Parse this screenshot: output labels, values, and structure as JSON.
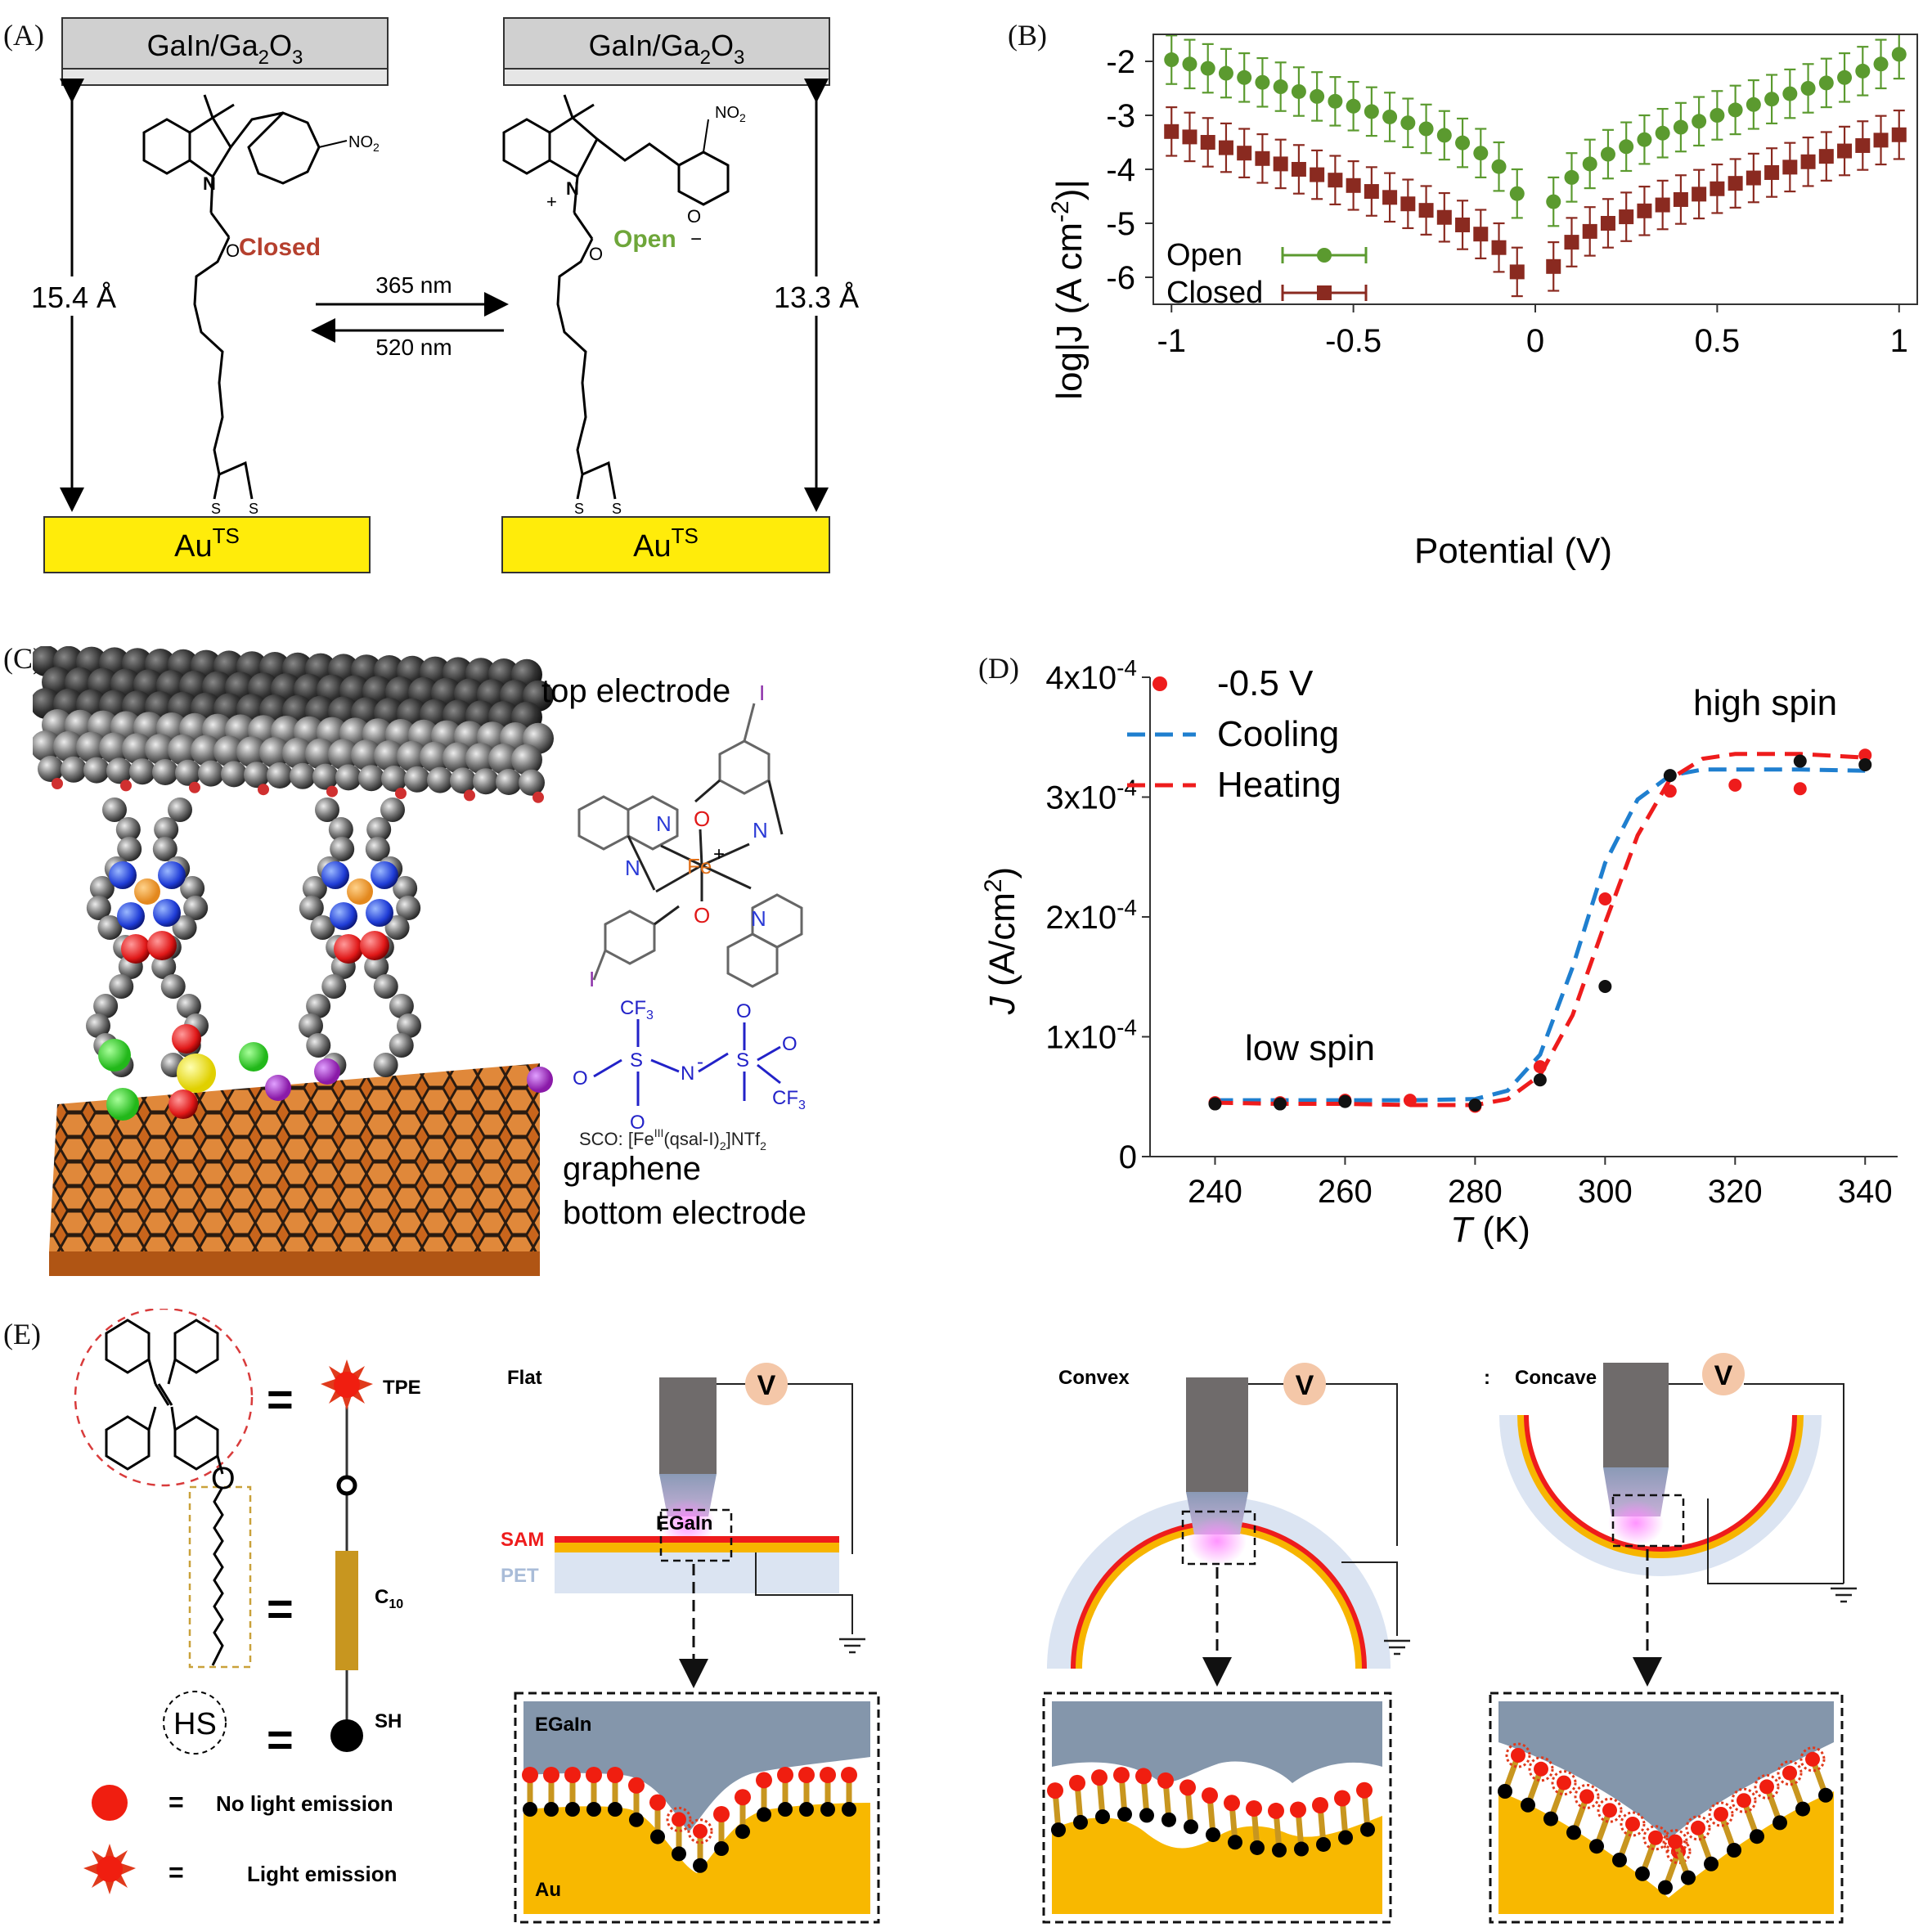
{
  "panel_labels": {
    "a": "(A)",
    "b": "(B)",
    "c": "(C)",
    "d": "(D)",
    "e": "(E)"
  },
  "panel_a": {
    "electrode_top": "GaIn/Ga",
    "electrode_top_sub": "2",
    "electrode_top_tail": "O",
    "electrode_top_sub2": "3",
    "bottom_main": "Au",
    "bottom_sup": "TS",
    "closed_label": "Closed",
    "open_label": "Open",
    "left_distance": "15.4 Å",
    "right_distance": "13.3 Å",
    "forward_wavelength": "365 nm",
    "back_wavelength": "520 nm",
    "nitro": "NO",
    "nitro_sub": "2",
    "nitrogen": "N",
    "oxygen": "O",
    "sulfur": "S",
    "plus": "+",
    "minus": "−"
  },
  "panel_c": {
    "top_electrode": "top  electrode",
    "graphene": "graphene",
    "bottom_electrode": "bottom  electrode",
    "sco_prefix": "SCO: [Fe",
    "sco_sup": "III",
    "sco_mid": "(qsal-I)",
    "sco_sub": "2",
    "sco_suffix": "]NTf",
    "sco_sub2": "2",
    "iodine": "I",
    "iron": "Fe",
    "plus": "+",
    "nitrogen": "N",
    "oxygen": "O",
    "sulfur": "S",
    "cf3": "CF",
    "cf3_sub": "3",
    "minus": "-"
  },
  "panel_e": {
    "tpe_label": "TPE",
    "o_label": "O",
    "c10_label": "C",
    "c10_sub": "10",
    "sh_label": "SH",
    "hs_label": "HS",
    "equals": "=",
    "no_emission": "No light emission",
    "emission": "Light emission",
    "flat": "Flat",
    "convex": "Convex",
    "concave": "Concave",
    "colon": ":",
    "voltage": "V",
    "egain": "EGaIn",
    "sam": "SAM",
    "pet": "PET",
    "au": "Au"
  },
  "chart_data": [
    {
      "type": "scatter",
      "panel": "B",
      "xlabel": "Potential (V)",
      "ylabel": "log|J (A cm",
      "ylabel_sup": "-2",
      "ylabel_tail": ")|",
      "xlim": [
        -1.05,
        1.05
      ],
      "ylim": [
        -6.5,
        -1.5
      ],
      "xticks": [
        -1,
        -0.5,
        0,
        0.5,
        1
      ],
      "xtick_labels": [
        "-1",
        "-0.5",
        "0",
        "0.5",
        "1"
      ],
      "yticks": [
        -2,
        -3,
        -4,
        -5,
        -6
      ],
      "ytick_labels": [
        "-2",
        "-3",
        "-4",
        "-5",
        "-6"
      ],
      "legend_position": "bottom-left",
      "error_bar": 0.45,
      "series": [
        {
          "name": "Open",
          "color": "#5b9a2f",
          "marker": "circle",
          "x": [
            -1,
            -0.95,
            -0.9,
            -0.85,
            -0.8,
            -0.75,
            -0.7,
            -0.65,
            -0.6,
            -0.55,
            -0.5,
            -0.45,
            -0.4,
            -0.35,
            -0.3,
            -0.25,
            -0.2,
            -0.15,
            -0.1,
            -0.05,
            0.05,
            0.1,
            0.15,
            0.2,
            0.25,
            0.3,
            0.35,
            0.4,
            0.45,
            0.5,
            0.55,
            0.6,
            0.65,
            0.7,
            0.75,
            0.8,
            0.85,
            0.9,
            0.95,
            1
          ],
          "y": [
            -1.97,
            -2.05,
            -2.13,
            -2.22,
            -2.3,
            -2.39,
            -2.47,
            -2.56,
            -2.65,
            -2.74,
            -2.83,
            -2.93,
            -3.03,
            -3.14,
            -3.25,
            -3.37,
            -3.51,
            -3.7,
            -3.95,
            -4.45,
            -4.6,
            -4.15,
            -3.9,
            -3.72,
            -3.58,
            -3.45,
            -3.33,
            -3.22,
            -3.11,
            -3.0,
            -2.9,
            -2.8,
            -2.7,
            -2.6,
            -2.5,
            -2.4,
            -2.3,
            -2.18,
            -2.05,
            -1.87
          ]
        },
        {
          "name": "Closed",
          "color": "#8a2a20",
          "marker": "square",
          "x": [
            -1,
            -0.95,
            -0.9,
            -0.85,
            -0.8,
            -0.75,
            -0.7,
            -0.65,
            -0.6,
            -0.55,
            -0.5,
            -0.45,
            -0.4,
            -0.35,
            -0.3,
            -0.25,
            -0.2,
            -0.15,
            -0.1,
            -0.05,
            0.05,
            0.1,
            0.15,
            0.2,
            0.25,
            0.3,
            0.35,
            0.4,
            0.45,
            0.5,
            0.55,
            0.6,
            0.65,
            0.7,
            0.75,
            0.8,
            0.85,
            0.9,
            0.95,
            1
          ],
          "y": [
            -3.3,
            -3.4,
            -3.5,
            -3.6,
            -3.7,
            -3.8,
            -3.9,
            -4.0,
            -4.1,
            -4.2,
            -4.3,
            -4.41,
            -4.52,
            -4.64,
            -4.76,
            -4.89,
            -5.03,
            -5.2,
            -5.45,
            -5.9,
            -5.8,
            -5.35,
            -5.15,
            -5.0,
            -4.88,
            -4.77,
            -4.66,
            -4.56,
            -4.46,
            -4.36,
            -4.26,
            -4.16,
            -4.06,
            -3.96,
            -3.86,
            -3.76,
            -3.66,
            -3.56,
            -3.46,
            -3.36
          ]
        }
      ]
    },
    {
      "type": "scatter",
      "panel": "D",
      "xlabel": "T",
      "xlabel_tail": " (K)",
      "ylabel": "J",
      "ylabel_tail": " (A/cm",
      "ylabel_sup": "2",
      "ylabel_end": ")",
      "xlim": [
        230,
        345
      ],
      "ylim": [
        0,
        0.0004
      ],
      "xticks": [
        240,
        260,
        280,
        300,
        320,
        340
      ],
      "xtick_labels": [
        "240",
        "260",
        "280",
        "300",
        "320",
        "340"
      ],
      "yticks": [
        0,
        0.0001,
        0.0002,
        0.0003,
        0.0004
      ],
      "ytick_labels": [
        {
          "base": "0",
          "sup": ""
        },
        {
          "base": "1x10",
          "sup": "-4"
        },
        {
          "base": "2x10",
          "sup": "-4"
        },
        {
          "base": "3x10",
          "sup": "-4"
        },
        {
          "base": "4x10",
          "sup": "-4"
        }
      ],
      "legend_position": "top-left",
      "annotations": [
        "low spin",
        "high spin"
      ],
      "series": [
        {
          "name": "-0.5 V",
          "color": "#ee1c1c",
          "marker": "circle",
          "x": [
            240,
            250,
            260,
            270,
            280,
            290,
            300,
            310,
            320,
            330,
            340
          ],
          "y": [
            4.5e-05,
            4.5e-05,
            4.7e-05,
            4.7e-05,
            4.2e-05,
            7.5e-05,
            0.000215,
            0.000305,
            0.00031,
            0.000307,
            0.000335
          ]
        },
        {
          "name": "",
          "color": "#111111",
          "marker": "circle",
          "x": [
            240,
            250,
            260,
            280,
            290,
            300,
            310,
            330,
            340
          ],
          "y": [
            4.4e-05,
            4.4e-05,
            4.6e-05,
            4.3e-05,
            6.4e-05,
            0.000142,
            0.000318,
            0.00033,
            0.000327
          ]
        },
        {
          "name": "Cooling",
          "color": "#1f7fcf",
          "style": "dashed",
          "x": [
            240,
            250,
            260,
            270,
            280,
            285,
            290,
            295,
            300,
            305,
            310,
            315,
            320,
            330,
            340
          ],
          "y": [
            4.7e-05,
            4.7e-05,
            4.7e-05,
            4.7e-05,
            4.8e-05,
            5.5e-05,
            8.5e-05,
            0.000158,
            0.000245,
            0.000298,
            0.000318,
            0.000323,
            0.000323,
            0.000323,
            0.000322
          ]
        },
        {
          "name": "Heating",
          "color": "#ee1c1c",
          "style": "dashed",
          "x": [
            240,
            250,
            260,
            270,
            280,
            285,
            290,
            295,
            300,
            305,
            310,
            315,
            320,
            330,
            340
          ],
          "y": [
            4.5e-05,
            4.4e-05,
            4.4e-05,
            4.3e-05,
            4.3e-05,
            4.8e-05,
            6.8e-05,
            0.000118,
            0.000195,
            0.000268,
            0.000315,
            0.000332,
            0.000336,
            0.000336,
            0.000333
          ]
        }
      ]
    }
  ]
}
